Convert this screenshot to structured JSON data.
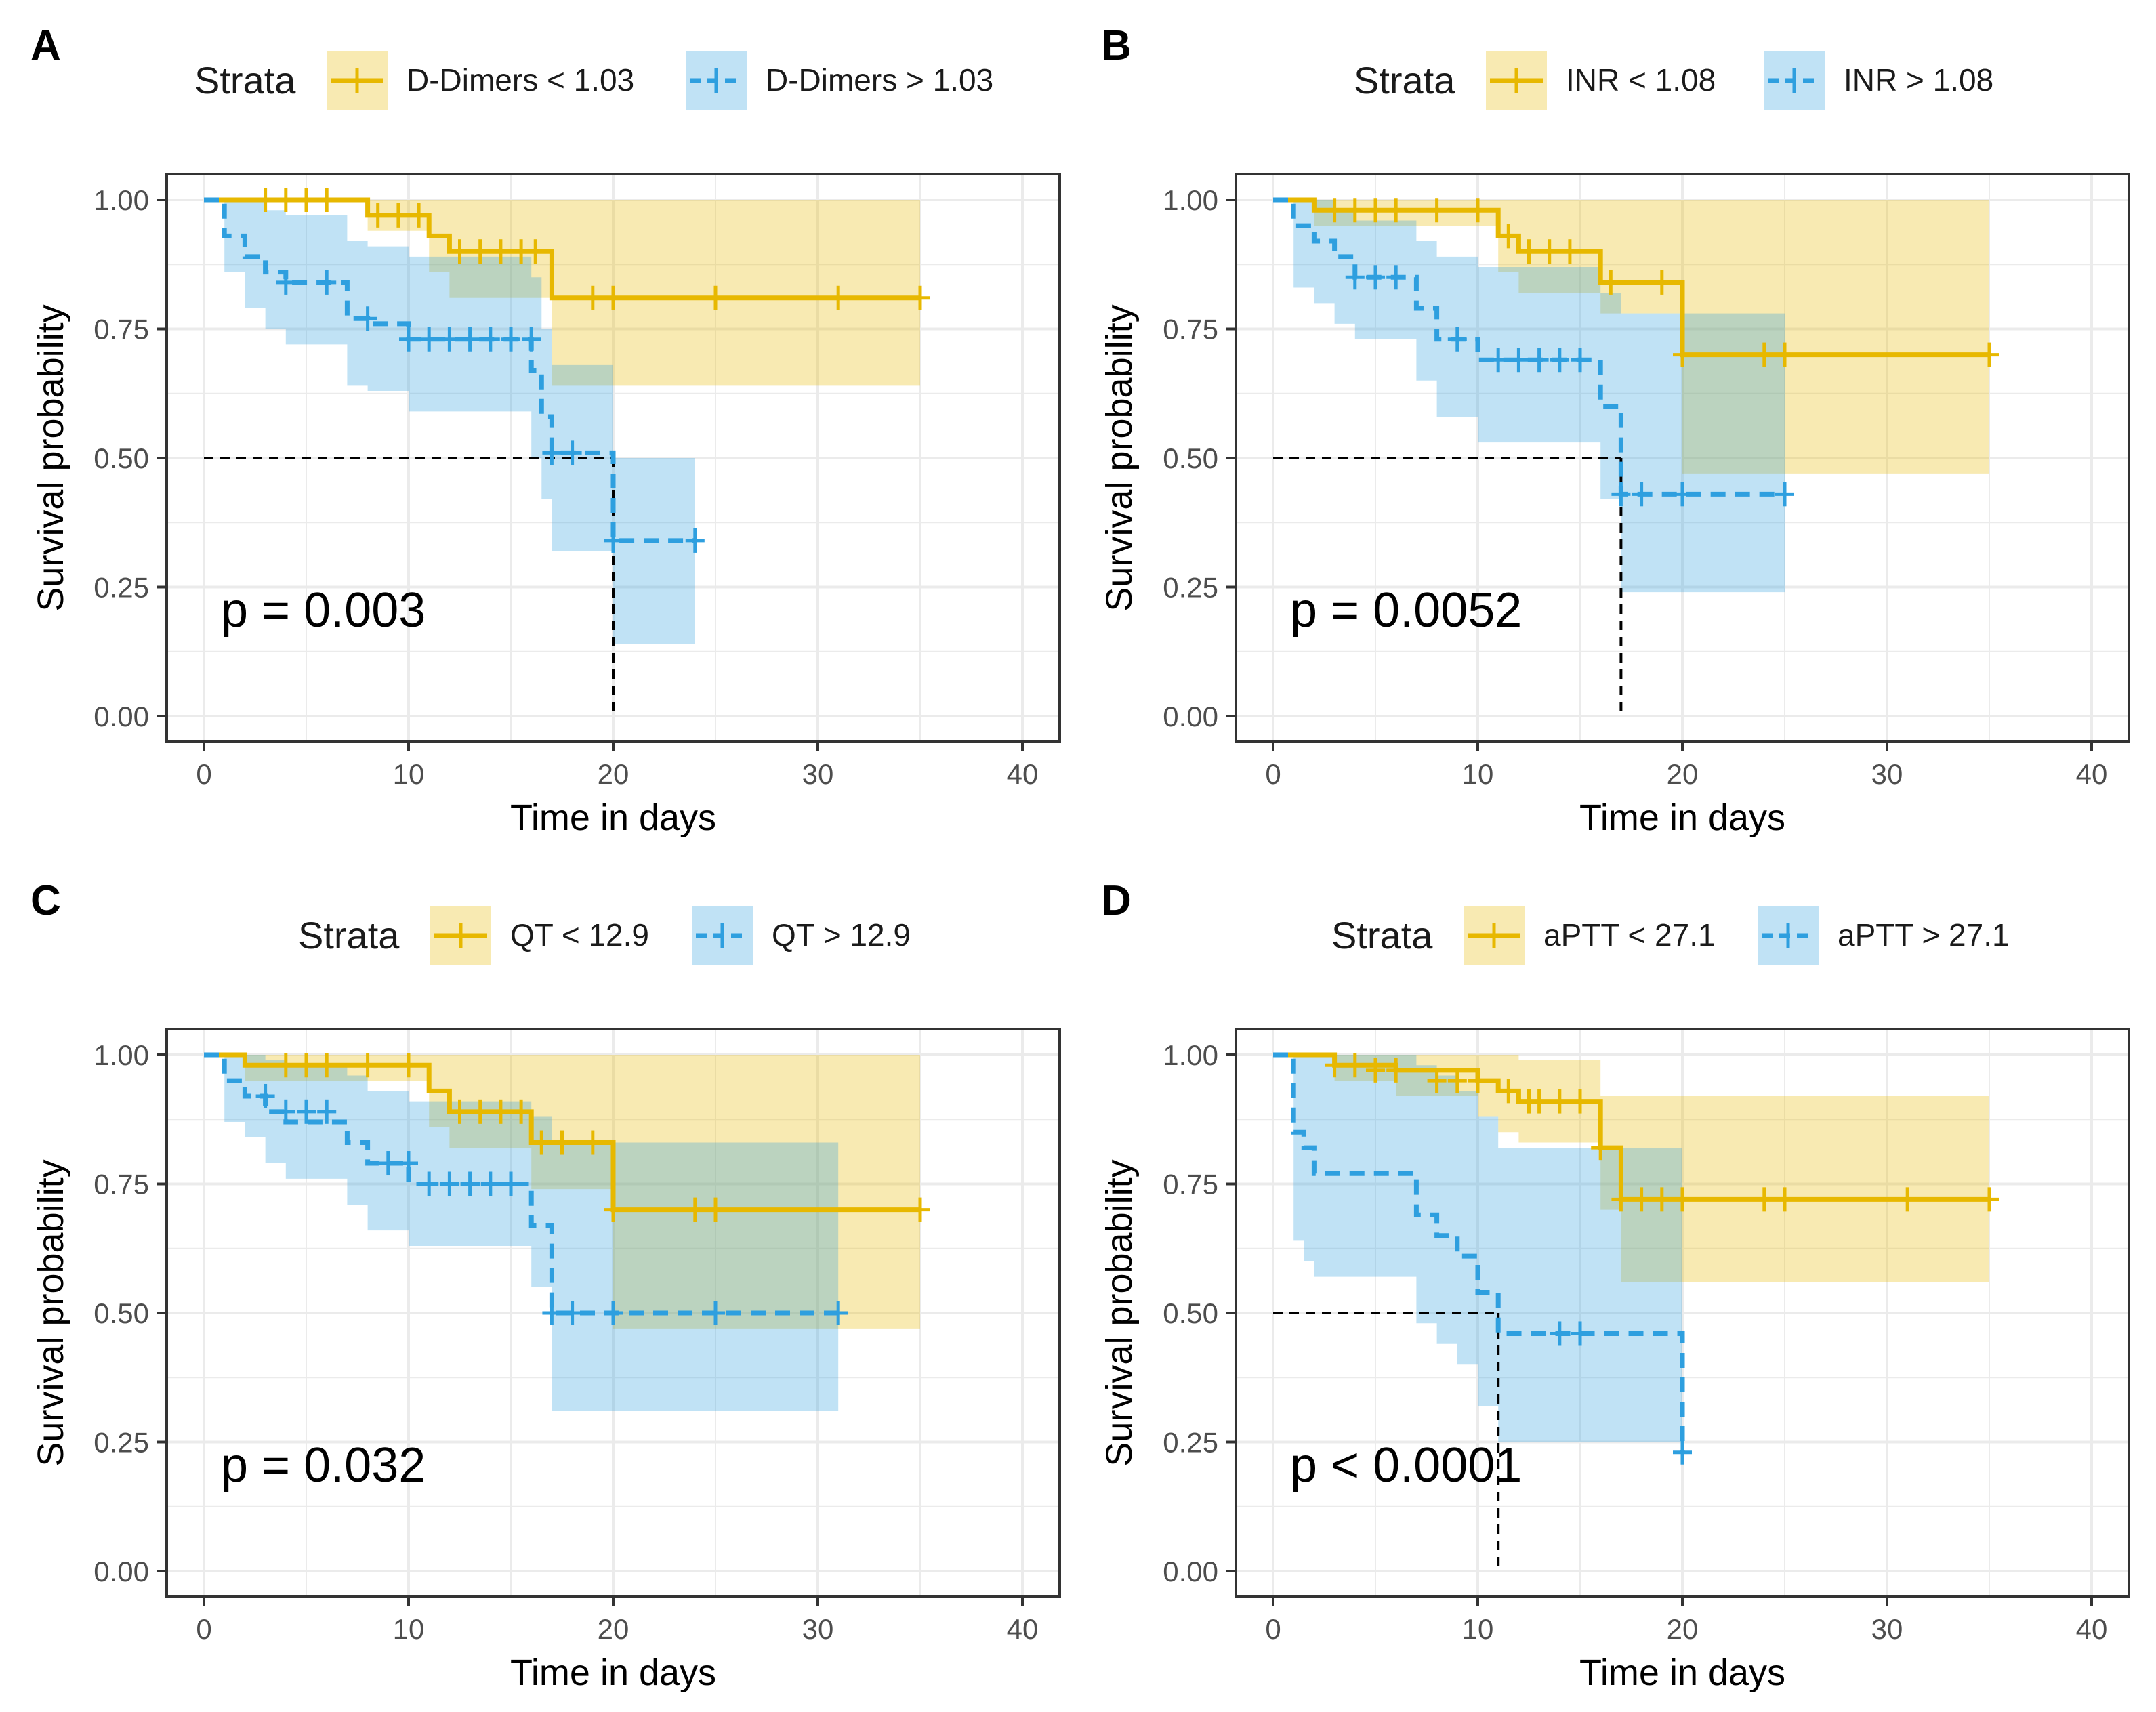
{
  "colors": {
    "low": "#E7B800",
    "high": "#2E9FDF",
    "low_band": "#E7B800",
    "high_band": "#2E9FDF",
    "median_line": "#000000",
    "grid": "#ebebeb",
    "frame": "#333333"
  },
  "chart_data": [
    {
      "type": "line",
      "panel": "A",
      "legend_title": "Strata",
      "xlabel": "Time in days",
      "ylabel": "Survival probability",
      "xlim": [
        0,
        40
      ],
      "ylim": [
        0,
        1
      ],
      "xticks": [
        0,
        10,
        20,
        30,
        40
      ],
      "yticks": [
        "0.00",
        "0.25",
        "0.50",
        "0.75",
        "1.00"
      ],
      "pvalue": "p = 0.003",
      "median": {
        "x": 20,
        "y": 0.5
      },
      "series": [
        {
          "name": "D-Dimers < 1.03",
          "style": "solid",
          "x": [
            0,
            8,
            11,
            12,
            17,
            35
          ],
          "y": [
            1.0,
            0.97,
            0.93,
            0.9,
            0.81,
            0.81
          ],
          "lower": [
            1.0,
            0.94,
            0.86,
            0.81,
            0.64,
            0.64
          ],
          "upper": [
            1.0,
            1.0,
            1.0,
            1.0,
            1.0,
            1.0
          ],
          "censored": [
            [
              3,
              1.0
            ],
            [
              4,
              1.0
            ],
            [
              5,
              1.0
            ],
            [
              6,
              1.0
            ],
            [
              8.5,
              0.97
            ],
            [
              9.5,
              0.97
            ],
            [
              10.5,
              0.97
            ],
            [
              12.5,
              0.9
            ],
            [
              13.5,
              0.9
            ],
            [
              14.5,
              0.9
            ],
            [
              15.5,
              0.9
            ],
            [
              16.2,
              0.9
            ],
            [
              19,
              0.81
            ],
            [
              20,
              0.81
            ],
            [
              25,
              0.81
            ],
            [
              31,
              0.81
            ],
            [
              35,
              0.81
            ]
          ]
        },
        {
          "name": "D-Dimers > 1.03",
          "style": "dashed",
          "x": [
            0,
            1,
            2,
            3,
            4,
            7,
            8,
            10,
            16,
            16.5,
            17,
            20,
            24
          ],
          "y": [
            1.0,
            0.93,
            0.89,
            0.86,
            0.84,
            0.77,
            0.76,
            0.73,
            0.67,
            0.58,
            0.51,
            0.34,
            0.34
          ],
          "lower": [
            1.0,
            0.86,
            0.79,
            0.75,
            0.72,
            0.64,
            0.63,
            0.59,
            0.5,
            0.42,
            0.32,
            0.14,
            0.14
          ],
          "upper": [
            1.0,
            1.0,
            1.0,
            0.98,
            0.97,
            0.92,
            0.91,
            0.89,
            0.85,
            0.75,
            0.68,
            0.5,
            0.5
          ],
          "censored": [
            [
              4,
              0.84
            ],
            [
              6,
              0.84
            ],
            [
              8,
              0.77
            ],
            [
              10,
              0.73
            ],
            [
              11,
              0.73
            ],
            [
              12,
              0.73
            ],
            [
              13,
              0.73
            ],
            [
              14,
              0.73
            ],
            [
              15,
              0.73
            ],
            [
              16,
              0.73
            ],
            [
              17,
              0.51
            ],
            [
              18,
              0.51
            ],
            [
              20,
              0.34
            ],
            [
              24,
              0.34
            ]
          ]
        }
      ]
    },
    {
      "type": "line",
      "panel": "B",
      "legend_title": "Strata",
      "xlabel": "Time in days",
      "ylabel": "Survival probability",
      "xlim": [
        0,
        40
      ],
      "ylim": [
        0,
        1
      ],
      "xticks": [
        0,
        10,
        20,
        30,
        40
      ],
      "yticks": [
        "0.00",
        "0.25",
        "0.50",
        "0.75",
        "1.00"
      ],
      "pvalue": "p = 0.0052",
      "median": {
        "x": 17,
        "y": 0.5
      },
      "series": [
        {
          "name": "INR < 1.08",
          "style": "solid",
          "x": [
            0,
            2,
            11,
            12,
            16,
            20,
            35
          ],
          "y": [
            1.0,
            0.98,
            0.93,
            0.9,
            0.84,
            0.7,
            0.7
          ],
          "lower": [
            1.0,
            0.95,
            0.86,
            0.82,
            0.78,
            0.47,
            0.47
          ],
          "upper": [
            1.0,
            1.0,
            1.0,
            1.0,
            1.0,
            1.0,
            1.0
          ],
          "censored": [
            [
              3,
              0.98
            ],
            [
              4,
              0.98
            ],
            [
              5,
              0.98
            ],
            [
              6,
              0.98
            ],
            [
              8,
              0.98
            ],
            [
              10,
              0.98
            ],
            [
              11.5,
              0.93
            ],
            [
              12.5,
              0.9
            ],
            [
              13.5,
              0.9
            ],
            [
              14.5,
              0.9
            ],
            [
              16.5,
              0.84
            ],
            [
              19,
              0.84
            ],
            [
              20,
              0.7
            ],
            [
              24,
              0.7
            ],
            [
              25,
              0.7
            ],
            [
              35,
              0.7
            ]
          ]
        },
        {
          "name": "INR > 1.08",
          "style": "dashed",
          "x": [
            0,
            1,
            2,
            3,
            4,
            7,
            8,
            10,
            16,
            17,
            25
          ],
          "y": [
            1.0,
            0.95,
            0.92,
            0.89,
            0.85,
            0.79,
            0.73,
            0.69,
            0.6,
            0.43,
            0.43
          ],
          "lower": [
            1.0,
            0.83,
            0.8,
            0.76,
            0.73,
            0.65,
            0.58,
            0.53,
            0.42,
            0.24,
            0.24
          ],
          "upper": [
            1.0,
            1.0,
            1.0,
            0.98,
            0.96,
            0.92,
            0.89,
            0.87,
            0.82,
            0.78,
            0.78
          ],
          "censored": [
            [
              4,
              0.85
            ],
            [
              5,
              0.85
            ],
            [
              6,
              0.85
            ],
            [
              9,
              0.73
            ],
            [
              11,
              0.69
            ],
            [
              12,
              0.69
            ],
            [
              13,
              0.69
            ],
            [
              14,
              0.69
            ],
            [
              15,
              0.69
            ],
            [
              17,
              0.43
            ],
            [
              18,
              0.43
            ],
            [
              20,
              0.43
            ],
            [
              25,
              0.43
            ]
          ]
        }
      ]
    },
    {
      "type": "line",
      "panel": "C",
      "legend_title": "Strata",
      "xlabel": "Time in days",
      "ylabel": "Survival probability",
      "xlim": [
        0,
        40
      ],
      "ylim": [
        0,
        1
      ],
      "xticks": [
        0,
        10,
        20,
        30,
        40
      ],
      "yticks": [
        "0.00",
        "0.25",
        "0.50",
        "0.75",
        "1.00"
      ],
      "pvalue": "p = 0.032",
      "series": [
        {
          "name": "QT < 12.9",
          "style": "solid",
          "x": [
            0,
            2,
            11,
            12,
            16,
            20,
            35
          ],
          "y": [
            1.0,
            0.98,
            0.93,
            0.89,
            0.83,
            0.7,
            0.7
          ],
          "lower": [
            1.0,
            0.95,
            0.86,
            0.82,
            0.74,
            0.47,
            0.47
          ],
          "upper": [
            1.0,
            1.0,
            1.0,
            1.0,
            1.0,
            1.0,
            1.0
          ],
          "censored": [
            [
              4,
              0.98
            ],
            [
              5,
              0.98
            ],
            [
              6,
              0.98
            ],
            [
              8,
              0.98
            ],
            [
              10,
              0.98
            ],
            [
              12.5,
              0.89
            ],
            [
              13.5,
              0.89
            ],
            [
              14.5,
              0.89
            ],
            [
              15.5,
              0.89
            ],
            [
              16.5,
              0.83
            ],
            [
              17.5,
              0.83
            ],
            [
              19,
              0.83
            ],
            [
              20,
              0.7
            ],
            [
              24,
              0.7
            ],
            [
              25,
              0.7
            ],
            [
              35,
              0.7
            ]
          ]
        },
        {
          "name": "QT > 12.9",
          "style": "dashed",
          "x": [
            0,
            1,
            2,
            3,
            4,
            7,
            8,
            10,
            16,
            17,
            31
          ],
          "y": [
            1.0,
            0.95,
            0.92,
            0.89,
            0.87,
            0.83,
            0.79,
            0.75,
            0.67,
            0.5,
            0.5
          ],
          "lower": [
            1.0,
            0.87,
            0.84,
            0.79,
            0.76,
            0.71,
            0.66,
            0.63,
            0.55,
            0.31,
            0.31
          ],
          "upper": [
            1.0,
            1.0,
            1.0,
            0.99,
            0.98,
            0.96,
            0.93,
            0.91,
            0.88,
            0.83,
            0.83
          ],
          "censored": [
            [
              3,
              0.92
            ],
            [
              4,
              0.89
            ],
            [
              5,
              0.89
            ],
            [
              6,
              0.89
            ],
            [
              9,
              0.79
            ],
            [
              10,
              0.79
            ],
            [
              11,
              0.75
            ],
            [
              12,
              0.75
            ],
            [
              13,
              0.75
            ],
            [
              14,
              0.75
            ],
            [
              15,
              0.75
            ],
            [
              17,
              0.5
            ],
            [
              18,
              0.5
            ],
            [
              20,
              0.5
            ],
            [
              25,
              0.5
            ],
            [
              31,
              0.5
            ]
          ]
        }
      ]
    },
    {
      "type": "line",
      "panel": "D",
      "legend_title": "Strata",
      "xlabel": "Time in days",
      "ylabel": "Survival probability",
      "xlim": [
        0,
        40
      ],
      "ylim": [
        0,
        1
      ],
      "xticks": [
        0,
        10,
        20,
        30,
        40
      ],
      "yticks": [
        "0.00",
        "0.25",
        "0.50",
        "0.75",
        "1.00"
      ],
      "pvalue": "p < 0.0001",
      "median": {
        "x": 11,
        "y": 0.5
      },
      "series": [
        {
          "name": "aPTT < 27.1",
          "style": "solid",
          "x": [
            0,
            3,
            6,
            10,
            11,
            12,
            16,
            17,
            35
          ],
          "y": [
            1.0,
            0.98,
            0.97,
            0.95,
            0.93,
            0.91,
            0.82,
            0.72,
            0.72
          ],
          "lower": [
            1.0,
            0.95,
            0.92,
            0.88,
            0.85,
            0.83,
            0.7,
            0.56,
            0.56
          ],
          "upper": [
            1.0,
            1.0,
            1.0,
            1.0,
            1.0,
            0.99,
            0.92,
            0.92,
            0.92
          ],
          "censored": [
            [
              3,
              0.98
            ],
            [
              4,
              0.98
            ],
            [
              5,
              0.97
            ],
            [
              6,
              0.97
            ],
            [
              8,
              0.95
            ],
            [
              9,
              0.95
            ],
            [
              10,
              0.95
            ],
            [
              11.5,
              0.93
            ],
            [
              12.5,
              0.91
            ],
            [
              13,
              0.91
            ],
            [
              14,
              0.91
            ],
            [
              15,
              0.91
            ],
            [
              16,
              0.82
            ],
            [
              17,
              0.72
            ],
            [
              18,
              0.72
            ],
            [
              19,
              0.72
            ],
            [
              20,
              0.72
            ],
            [
              24,
              0.72
            ],
            [
              25,
              0.72
            ],
            [
              31,
              0.72
            ],
            [
              35,
              0.72
            ]
          ]
        },
        {
          "name": "aPTT > 27.1",
          "style": "dashed",
          "x": [
            0,
            1,
            1.5,
            2,
            7,
            8,
            9,
            10,
            11,
            20
          ],
          "y": [
            1.0,
            0.85,
            0.82,
            0.77,
            0.69,
            0.65,
            0.61,
            0.54,
            0.46,
            0.23
          ],
          "lower": [
            1.0,
            0.64,
            0.6,
            0.57,
            0.48,
            0.44,
            0.4,
            0.32,
            0.25,
            0.25
          ],
          "upper": [
            1.0,
            1.0,
            1.0,
            1.0,
            0.98,
            0.96,
            0.93,
            0.88,
            0.82,
            0.82
          ],
          "censored": [
            [
              14,
              0.46
            ],
            [
              15,
              0.46
            ],
            [
              20,
              0.23
            ]
          ]
        }
      ]
    }
  ]
}
